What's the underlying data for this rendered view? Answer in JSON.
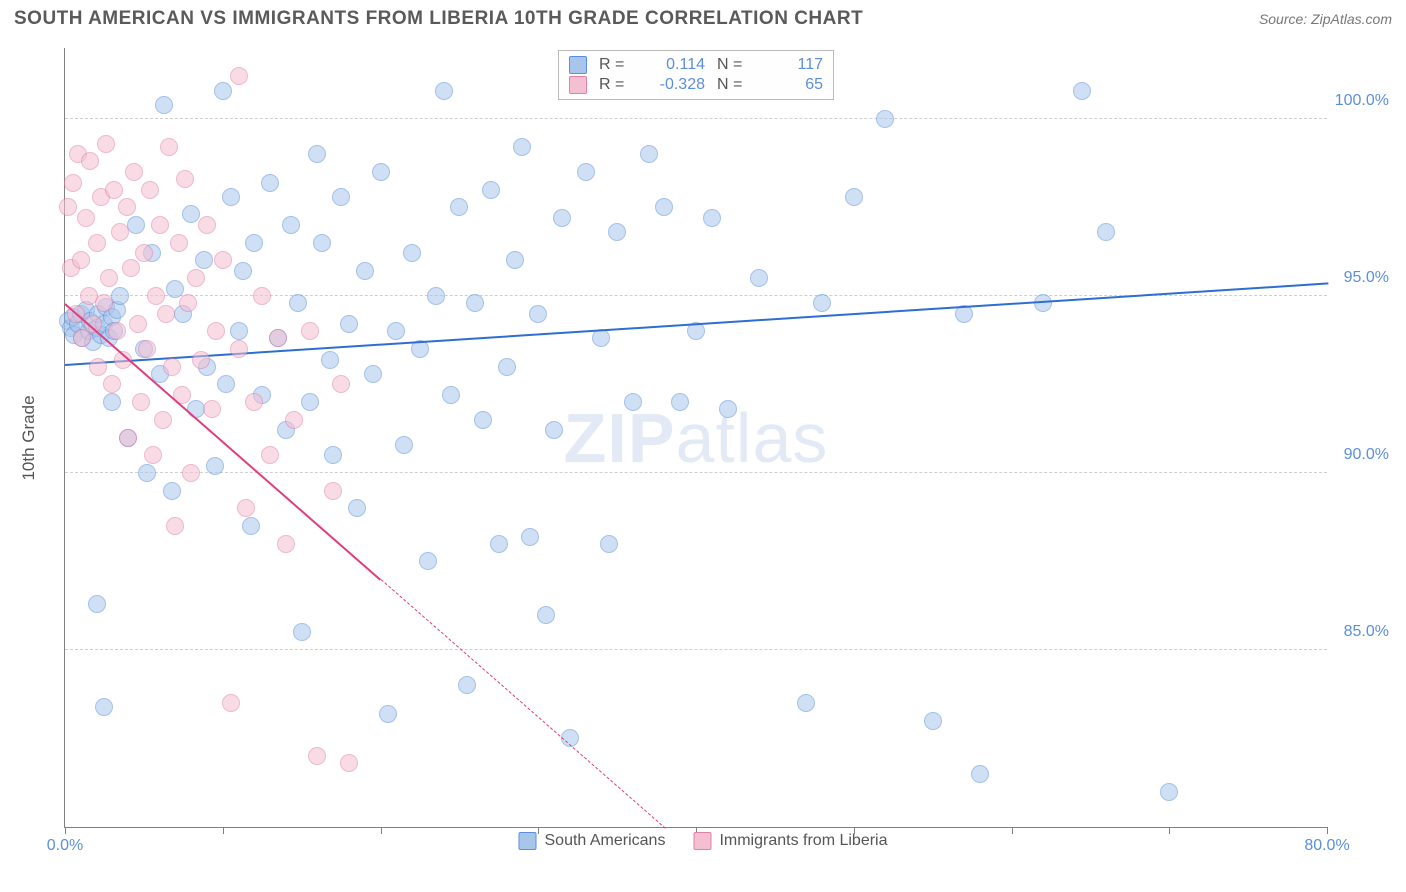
{
  "header": {
    "title": "SOUTH AMERICAN VS IMMIGRANTS FROM LIBERIA 10TH GRADE CORRELATION CHART",
    "source": "Source: ZipAtlas.com"
  },
  "chart": {
    "type": "scatter",
    "y_axis_label": "10th Grade",
    "watermark": {
      "bold": "ZIP",
      "rest": "atlas"
    },
    "xlim": [
      0,
      80
    ],
    "ylim": [
      80,
      102
    ],
    "x_ticks": [
      0,
      10,
      20,
      30,
      40,
      50,
      60,
      70,
      80
    ],
    "x_tick_labels": {
      "0": "0.0%",
      "80": "80.0%"
    },
    "y_ticks": [
      85,
      90,
      95,
      100
    ],
    "y_tick_labels": {
      "85": "85.0%",
      "90": "90.0%",
      "95": "95.0%",
      "100": "100.0%"
    },
    "background_color": "#ffffff",
    "grid_color": "#cfcfcf",
    "axis_color": "#808080",
    "tick_label_color": "#5b8fdc",
    "marker_radius": 9,
    "marker_opacity": 0.55,
    "series": [
      {
        "key": "south_americans",
        "name": "South Americans",
        "fill_color": "#a8c5ec",
        "stroke_color": "#5b8fdc",
        "line_color": "#2e6ed1",
        "R": "0.114",
        "N": "117",
        "trend": {
          "x1": 0,
          "y1": 93.1,
          "x2": 80,
          "y2": 95.4,
          "solid_until_x": 80
        },
        "points": [
          [
            0.2,
            94.3
          ],
          [
            0.4,
            94.1
          ],
          [
            0.5,
            94.4
          ],
          [
            0.6,
            93.9
          ],
          [
            0.8,
            94.2
          ],
          [
            1.0,
            94.5
          ],
          [
            1.1,
            93.8
          ],
          [
            1.3,
            94.6
          ],
          [
            1.5,
            94.0
          ],
          [
            1.6,
            94.3
          ],
          [
            1.8,
            93.7
          ],
          [
            2.0,
            94.1
          ],
          [
            2.1,
            94.5
          ],
          [
            2.3,
            93.9
          ],
          [
            2.5,
            94.2
          ],
          [
            2.6,
            94.7
          ],
          [
            2.8,
            93.8
          ],
          [
            3.0,
            94.4
          ],
          [
            3.1,
            94.0
          ],
          [
            3.3,
            94.6
          ],
          [
            2.0,
            86.3
          ],
          [
            2.5,
            83.4
          ],
          [
            3.0,
            92.0
          ],
          [
            3.5,
            95.0
          ],
          [
            4.0,
            91.0
          ],
          [
            4.5,
            97.0
          ],
          [
            5.0,
            93.5
          ],
          [
            5.2,
            90.0
          ],
          [
            5.5,
            96.2
          ],
          [
            6.0,
            92.8
          ],
          [
            6.3,
            100.4
          ],
          [
            6.8,
            89.5
          ],
          [
            7.0,
            95.2
          ],
          [
            7.5,
            94.5
          ],
          [
            8.0,
            97.3
          ],
          [
            8.3,
            91.8
          ],
          [
            8.8,
            96.0
          ],
          [
            9.0,
            93.0
          ],
          [
            9.5,
            90.2
          ],
          [
            10.0,
            100.8
          ],
          [
            10.2,
            92.5
          ],
          [
            10.5,
            97.8
          ],
          [
            11.0,
            94.0
          ],
          [
            11.3,
            95.7
          ],
          [
            11.8,
            88.5
          ],
          [
            12.0,
            96.5
          ],
          [
            12.5,
            92.2
          ],
          [
            13.0,
            98.2
          ],
          [
            13.5,
            93.8
          ],
          [
            14.0,
            91.2
          ],
          [
            14.3,
            97.0
          ],
          [
            14.8,
            94.8
          ],
          [
            15.0,
            85.5
          ],
          [
            15.5,
            92.0
          ],
          [
            16.0,
            99.0
          ],
          [
            16.3,
            96.5
          ],
          [
            16.8,
            93.2
          ],
          [
            17.0,
            90.5
          ],
          [
            17.5,
            97.8
          ],
          [
            18.0,
            94.2
          ],
          [
            18.5,
            89.0
          ],
          [
            19.0,
            95.7
          ],
          [
            19.5,
            92.8
          ],
          [
            20.0,
            98.5
          ],
          [
            20.5,
            83.2
          ],
          [
            21.0,
            94.0
          ],
          [
            21.5,
            90.8
          ],
          [
            22.0,
            96.2
          ],
          [
            22.5,
            93.5
          ],
          [
            23.0,
            87.5
          ],
          [
            23.5,
            95.0
          ],
          [
            24.0,
            100.8
          ],
          [
            24.5,
            92.2
          ],
          [
            25.0,
            97.5
          ],
          [
            25.5,
            84.0
          ],
          [
            26.0,
            94.8
          ],
          [
            26.5,
            91.5
          ],
          [
            27.0,
            98.0
          ],
          [
            27.5,
            88.0
          ],
          [
            28.0,
            93.0
          ],
          [
            28.5,
            96.0
          ],
          [
            29.0,
            99.2
          ],
          [
            29.5,
            88.2
          ],
          [
            30.0,
            94.5
          ],
          [
            30.5,
            86.0
          ],
          [
            31.0,
            91.2
          ],
          [
            31.5,
            97.2
          ],
          [
            32.0,
            82.5
          ],
          [
            33.0,
            98.5
          ],
          [
            34.0,
            93.8
          ],
          [
            34.5,
            88.0
          ],
          [
            35.0,
            96.8
          ],
          [
            36.0,
            92.0
          ],
          [
            37.0,
            99.0
          ],
          [
            38.0,
            97.5
          ],
          [
            39.0,
            92.0
          ],
          [
            40.0,
            94.0
          ],
          [
            41.0,
            97.2
          ],
          [
            42.0,
            91.8
          ],
          [
            44.0,
            95.5
          ],
          [
            47.0,
            83.5
          ],
          [
            48.0,
            94.8
          ],
          [
            50.0,
            97.8
          ],
          [
            52.0,
            100.0
          ],
          [
            55.0,
            83.0
          ],
          [
            57.0,
            94.5
          ],
          [
            58.0,
            81.5
          ],
          [
            62.0,
            94.8
          ],
          [
            64.5,
            100.8
          ],
          [
            66.0,
            96.8
          ],
          [
            70.0,
            81.0
          ]
        ]
      },
      {
        "key": "liberia",
        "name": "Immigrants from Liberia",
        "fill_color": "#f4bfd1",
        "stroke_color": "#e07fa8",
        "line_color": "#e23d7d",
        "R": "-0.328",
        "N": "65",
        "trend": {
          "x1": 0,
          "y1": 94.8,
          "x2": 38,
          "y2": 80.0,
          "solid_until_x": 20
        },
        "points": [
          [
            0.2,
            97.5
          ],
          [
            0.4,
            95.8
          ],
          [
            0.5,
            98.2
          ],
          [
            0.7,
            94.5
          ],
          [
            0.8,
            99.0
          ],
          [
            1.0,
            96.0
          ],
          [
            1.1,
            93.8
          ],
          [
            1.3,
            97.2
          ],
          [
            1.5,
            95.0
          ],
          [
            1.6,
            98.8
          ],
          [
            1.8,
            94.2
          ],
          [
            2.0,
            96.5
          ],
          [
            2.1,
            93.0
          ],
          [
            2.3,
            97.8
          ],
          [
            2.5,
            94.8
          ],
          [
            2.6,
            99.3
          ],
          [
            2.8,
            95.5
          ],
          [
            3.0,
            92.5
          ],
          [
            3.1,
            98.0
          ],
          [
            3.3,
            94.0
          ],
          [
            3.5,
            96.8
          ],
          [
            3.7,
            93.2
          ],
          [
            3.9,
            97.5
          ],
          [
            4.0,
            91.0
          ],
          [
            4.2,
            95.8
          ],
          [
            4.4,
            98.5
          ],
          [
            4.6,
            94.2
          ],
          [
            4.8,
            92.0
          ],
          [
            5.0,
            96.2
          ],
          [
            5.2,
            93.5
          ],
          [
            5.4,
            98.0
          ],
          [
            5.6,
            90.5
          ],
          [
            5.8,
            95.0
          ],
          [
            6.0,
            97.0
          ],
          [
            6.2,
            91.5
          ],
          [
            6.4,
            94.5
          ],
          [
            6.6,
            99.2
          ],
          [
            6.8,
            93.0
          ],
          [
            7.0,
            88.5
          ],
          [
            7.2,
            96.5
          ],
          [
            7.4,
            92.2
          ],
          [
            7.6,
            98.3
          ],
          [
            7.8,
            94.8
          ],
          [
            8.0,
            90.0
          ],
          [
            8.3,
            95.5
          ],
          [
            8.6,
            93.2
          ],
          [
            9.0,
            97.0
          ],
          [
            9.3,
            91.8
          ],
          [
            9.6,
            94.0
          ],
          [
            10.0,
            96.0
          ],
          [
            10.5,
            83.5
          ],
          [
            11.0,
            93.5
          ],
          [
            11.0,
            101.2
          ],
          [
            11.5,
            89.0
          ],
          [
            12.0,
            92.0
          ],
          [
            12.5,
            95.0
          ],
          [
            13.0,
            90.5
          ],
          [
            13.5,
            93.8
          ],
          [
            14.0,
            88.0
          ],
          [
            14.5,
            91.5
          ],
          [
            15.5,
            94.0
          ],
          [
            16.0,
            82.0
          ],
          [
            17.0,
            89.5
          ],
          [
            17.5,
            92.5
          ],
          [
            18.0,
            81.8
          ]
        ]
      }
    ],
    "legend_top": {
      "r_label": "R =",
      "n_label": "N ="
    },
    "legend_bottom": [
      {
        "series_key": "south_americans"
      },
      {
        "series_key": "liberia"
      }
    ]
  }
}
